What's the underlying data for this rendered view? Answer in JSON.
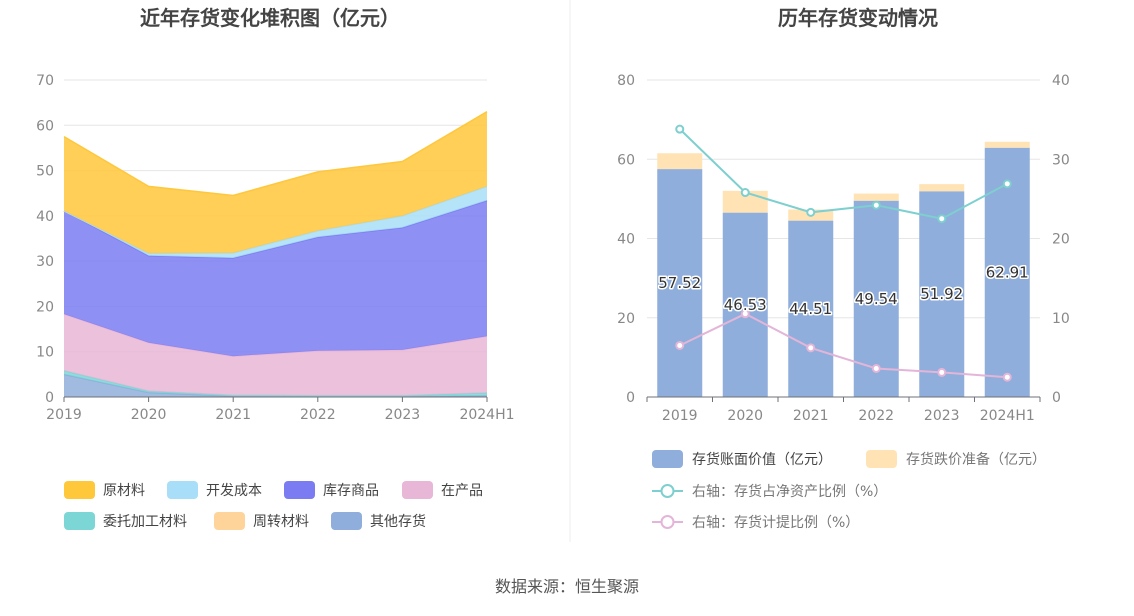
{
  "colors": {
    "raw_material": "#FFC73A",
    "dev_cost": "#A8DEF7",
    "finished_goods": "#7B7CF2",
    "wip": "#E8B6D6",
    "consigned": "#7DD6D6",
    "revolving": "#FFD49A",
    "other": "#8FAEDB",
    "book_value": "#8FAEDB",
    "impairment": "#FFE3B5",
    "ratio_net_assets": "#7ECFCF",
    "provision_ratio": "#E3B5D8"
  },
  "source": "数据来源：恒生聚源",
  "chart_data": [
    {
      "type": "area",
      "title": "近年存货变化堆积图（亿元）",
      "x": [
        "2019",
        "2020",
        "2021",
        "2022",
        "2023",
        "2024H1"
      ],
      "ylim": [
        0,
        70
      ],
      "yticks": [
        0,
        10,
        20,
        30,
        40,
        50,
        60,
        70
      ],
      "stacked": true,
      "grid": true,
      "legend_position": "bottom",
      "series": [
        {
          "name": "其他存货",
          "color_key": "other",
          "values": [
            5.0,
            1.0,
            0.2,
            0.1,
            0.1,
            0.3
          ]
        },
        {
          "name": "委托加工材料",
          "color_key": "consigned",
          "values": [
            0.8,
            0.3,
            0.2,
            0.2,
            0.2,
            0.6
          ]
        },
        {
          "name": "在产品",
          "color_key": "wip",
          "values": [
            12.5,
            10.7,
            8.6,
            9.9,
            10.1,
            12.5
          ]
        },
        {
          "name": "库存商品",
          "color_key": "finished_goods",
          "values": [
            22.8,
            19.2,
            21.7,
            25.1,
            27.0,
            30.0
          ]
        },
        {
          "name": "开发成本",
          "color_key": "dev_cost",
          "values": [
            0.0,
            0.5,
            1.1,
            1.4,
            2.6,
            3.1
          ]
        },
        {
          "name": "周转材料",
          "color_key": "revolving",
          "values": [
            0.0,
            0.0,
            0.0,
            0.0,
            0.0,
            0.0
          ]
        },
        {
          "name": "原材料",
          "color_key": "raw_material",
          "values": [
            16.4,
            14.8,
            12.7,
            13.0,
            12.0,
            16.5
          ]
        }
      ],
      "legend_order": [
        [
          "原材料",
          "开发成本",
          "库存商品",
          "在产品"
        ],
        [
          "委托加工材料",
          "周转材料",
          "其他存货"
        ]
      ]
    },
    {
      "type": "bar",
      "title": "历年存货变动情况",
      "categories": [
        "2019",
        "2020",
        "2021",
        "2022",
        "2023",
        "2024H1"
      ],
      "ylim": [
        0,
        80
      ],
      "yticks": [
        0,
        20,
        40,
        60,
        80
      ],
      "y2lim": [
        0,
        40
      ],
      "y2ticks": [
        0,
        10,
        20,
        30,
        40
      ],
      "stacked": true,
      "grid": true,
      "legend_position": "bottom",
      "series": [
        {
          "name": "存货账面价值（亿元）",
          "kind": "bar",
          "axis": "left",
          "color_key": "book_value",
          "values": [
            57.52,
            46.53,
            44.51,
            49.54,
            51.92,
            62.91
          ],
          "labels": [
            "57.52",
            "46.53",
            "44.51",
            "49.54",
            "51.92",
            "62.91"
          ]
        },
        {
          "name": "存货跌价准备（亿元）",
          "kind": "bar",
          "axis": "left",
          "color_key": "impairment",
          "values": [
            4.0,
            5.5,
            2.8,
            1.8,
            1.8,
            1.5
          ]
        },
        {
          "name": "右轴：存货占净资产比例（%）",
          "kind": "line",
          "axis": "right",
          "color_key": "ratio_net_assets",
          "values": [
            33.8,
            25.8,
            23.3,
            24.2,
            22.5,
            26.9
          ]
        },
        {
          "name": "右轴：存货计提比例（%）",
          "kind": "line",
          "axis": "right",
          "color_key": "provision_ratio",
          "values": [
            6.5,
            10.5,
            6.2,
            3.6,
            3.1,
            2.5
          ]
        }
      ]
    }
  ]
}
